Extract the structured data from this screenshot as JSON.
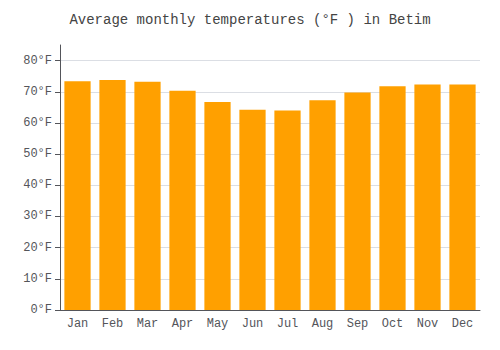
{
  "chart_data": {
    "type": "bar",
    "title": "Average monthly temperatures (°F ) in Betim",
    "categories": [
      "Jan",
      "Feb",
      "Mar",
      "Apr",
      "May",
      "Jun",
      "Jul",
      "Aug",
      "Sep",
      "Oct",
      "Nov",
      "Dec"
    ],
    "values": [
      73.4,
      73.8,
      73.2,
      70.3,
      66.7,
      64.2,
      64.0,
      67.3,
      69.8,
      71.8,
      72.3,
      72.3
    ],
    "color": "#FFA000",
    "ylim": [
      0,
      85
    ],
    "yticks": [
      {
        "value": 0,
        "label": "0°F"
      },
      {
        "value": 10,
        "label": "10°F"
      },
      {
        "value": 20,
        "label": "20°F"
      },
      {
        "value": 30,
        "label": "30°F"
      },
      {
        "value": 40,
        "label": "40°F"
      },
      {
        "value": 50,
        "label": "50°F"
      },
      {
        "value": 60,
        "label": "60°F"
      },
      {
        "value": 70,
        "label": "70°F"
      },
      {
        "value": 80,
        "label": "80°F"
      }
    ],
    "grid": true
  }
}
